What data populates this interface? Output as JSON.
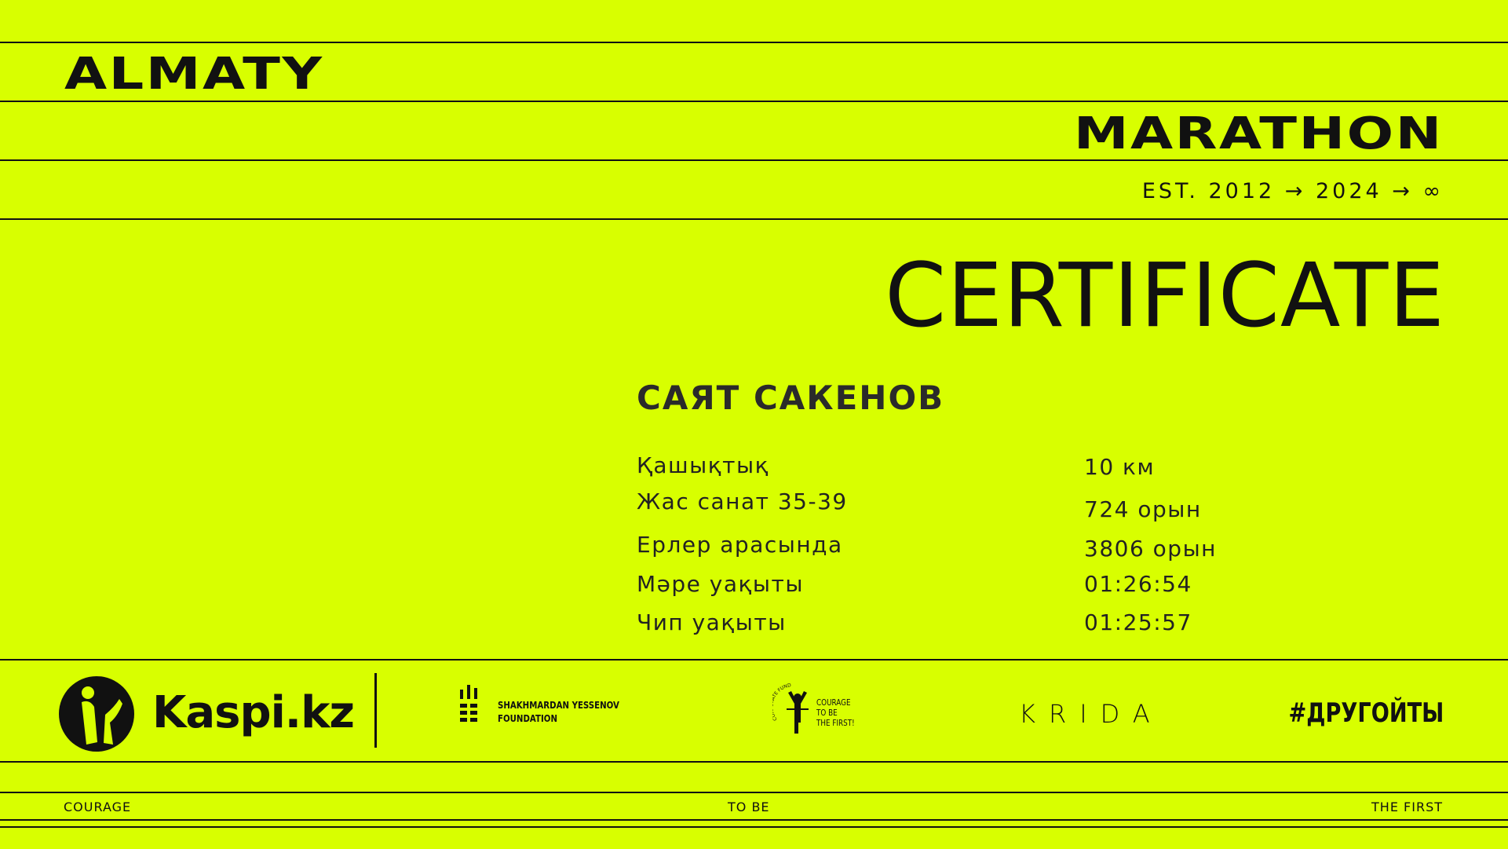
{
  "header": {
    "title_left": "ALMATY",
    "title_right": "MARATHON",
    "est": "EST. 2012 → 2024 → ∞"
  },
  "certificate": {
    "title": "CERTIFICATE",
    "name": "САЯТ САКЕНОВ",
    "rows": [
      {
        "label": "Қашықтық",
        "value": "10 км"
      },
      {
        "label": "Жас санат 35-39",
        "value": "724 орын"
      },
      {
        "label": "Ерлер арасында",
        "value": "3806 орын"
      },
      {
        "label": "Мәре уақыты",
        "value": "01:26:54"
      },
      {
        "label": "Чип уақыты",
        "value": "01:25:57"
      }
    ]
  },
  "sponsors": {
    "kaspi": "Kaspi.kz",
    "yessenov_line1": "SHAKHMARDAN YESSENOV",
    "yessenov_line2": "FOUNDATION",
    "fund_arc": "CORPORATE FUND",
    "fund_l1": "COURAGE",
    "fund_l2": "TO BE",
    "fund_l3": "THE FIRST!",
    "krida": "KRIDA",
    "hashtag": "#ДРУГОЙТЫ"
  },
  "footer": {
    "left": "COURAGE",
    "center": "TO BE",
    "right": "THE FIRST"
  },
  "colors": {
    "background": "#d8ff00",
    "ink": "#111111"
  }
}
